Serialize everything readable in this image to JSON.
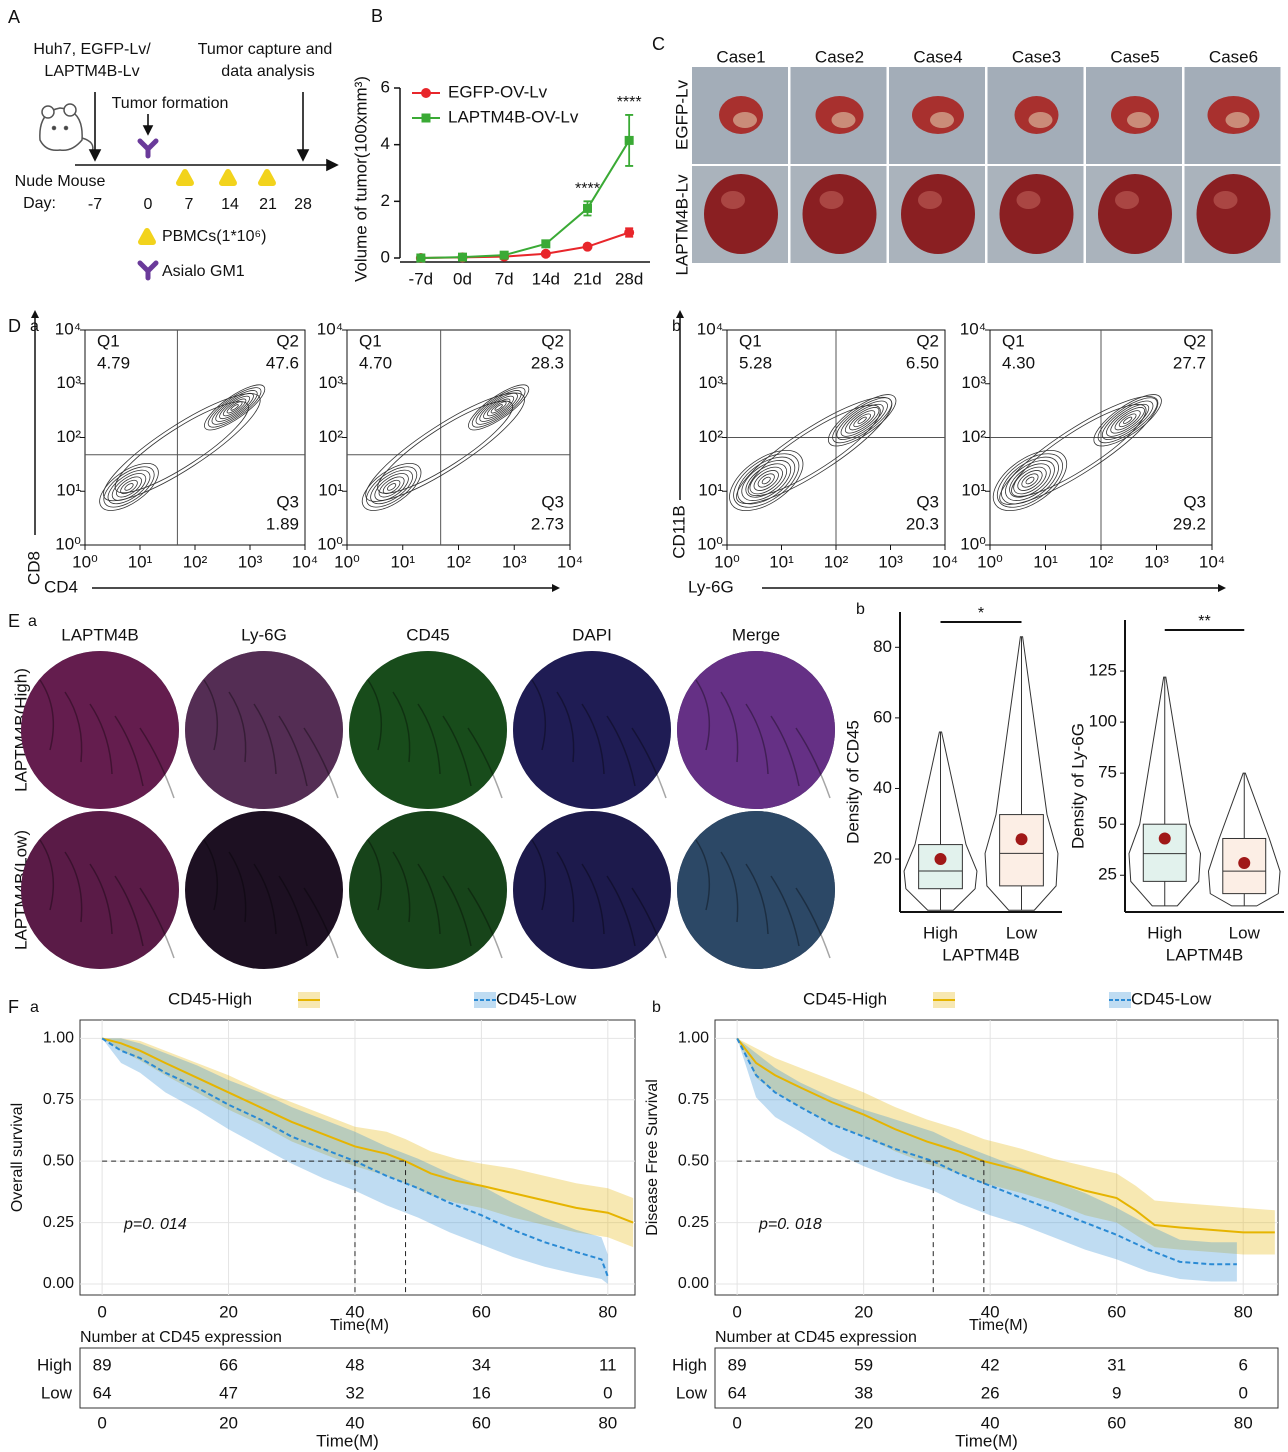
{
  "panel_a": {
    "panel_label": "A",
    "injection": [
      "Huh7, EGFP-Lv/",
      "LAPTM4B-Lv"
    ],
    "endpoint": [
      "Tumor capture and",
      "data analysis"
    ],
    "event": "Tumor formation",
    "subject": "Nude Mouse",
    "day_label": "Day:",
    "days": [
      "-7",
      "0",
      "7",
      "14",
      "21",
      "28"
    ],
    "legend": [
      "PBMCs(1*10⁶)",
      "Asialo GM1"
    ]
  },
  "panel_c": {
    "panel_label": "C",
    "cases": [
      "Case1",
      "Case2",
      "Case4",
      "Case3",
      "Case5",
      "Case6"
    ],
    "rows": [
      "EGFP-Lv",
      "LAPTM4B-Lv"
    ]
  },
  "panel_e": {
    "panel_label": "E",
    "subpanel_label": "a",
    "channels": [
      "LAPTM4B",
      "Ly-6G",
      "CD45",
      "DAPI",
      "Merge"
    ],
    "channel_colors": [
      "#d23c9b",
      "#b060a8",
      "#2aa32a",
      "#3a3aa8",
      "#222222"
    ],
    "rows": [
      "LAPTM4B(High)",
      "LAPTM4B(Low)"
    ]
  },
  "chart_data": [
    {
      "type": "line",
      "panel_label": "B",
      "y_label": "Volume of tumor(100xmm³)",
      "categories": [
        "-7d",
        "0d",
        "7d",
        "14d",
        "21d",
        "28d"
      ],
      "ylim": [
        0,
        6
      ],
      "yticks": [
        0,
        2,
        4,
        6
      ],
      "legend": "upper-left",
      "series": [
        {
          "name": "EGFP-OV-Lv",
          "color": "#e8262b",
          "marker": "circle",
          "values": [
            0,
            0.02,
            0.05,
            0.15,
            0.4,
            0.9
          ],
          "errors": [
            0.02,
            0.02,
            0.03,
            0.05,
            0.06,
            0.15
          ]
        },
        {
          "name": "LAPTM4B-OV-Lv",
          "color": "#3aaa35",
          "marker": "square",
          "values": [
            0,
            0.03,
            0.1,
            0.5,
            1.75,
            4.15
          ],
          "errors": [
            0.02,
            0.02,
            0.04,
            0.06,
            0.25,
            0.9
          ]
        }
      ],
      "significance": [
        null,
        null,
        null,
        null,
        "****",
        "****"
      ]
    },
    {
      "type": "contour",
      "panel_label": "D",
      "subpanel_label": "a",
      "x_label": "CD4",
      "y_label": "CD8",
      "log_scale": true,
      "xlim": [
        1,
        10000
      ],
      "ylim": [
        1,
        10000
      ],
      "xticks": [
        {
          "value": 1,
          "label": "10⁰"
        },
        {
          "value": 10,
          "label": "10¹"
        },
        {
          "value": 100,
          "label": "10²"
        },
        {
          "value": 1000,
          "label": "10³"
        },
        {
          "value": 10000,
          "label": "10⁴"
        }
      ],
      "yticks": [
        {
          "value": 1,
          "label": "10⁰"
        },
        {
          "value": 10,
          "label": "10¹"
        },
        {
          "value": 100,
          "label": "10²"
        },
        {
          "value": 1000,
          "label": "10³"
        },
        {
          "value": 10000,
          "label": "10⁴"
        }
      ],
      "quadrants": [
        "Q1",
        "Q2",
        "Q3"
      ],
      "values": [
        4.79,
        47.6,
        1.89
      ],
      "value_labels": [
        "4.79",
        "47.6",
        "1.89"
      ]
    },
    {
      "type": "contour",
      "log_scale": true,
      "xlim": [
        1,
        10000
      ],
      "ylim": [
        1,
        10000
      ],
      "xticks": [
        {
          "value": 1,
          "label": "10⁰"
        },
        {
          "value": 10,
          "label": "10¹"
        },
        {
          "value": 100,
          "label": "10²"
        },
        {
          "value": 1000,
          "label": "10³"
        },
        {
          "value": 10000,
          "label": "10⁴"
        }
      ],
      "yticks": [
        {
          "value": 1,
          "label": "10⁰"
        },
        {
          "value": 10,
          "label": "10¹"
        },
        {
          "value": 100,
          "label": "10²"
        },
        {
          "value": 1000,
          "label": "10³"
        },
        {
          "value": 10000,
          "label": "10⁴"
        }
      ],
      "quadrants": [
        "Q1",
        "Q2",
        "Q3"
      ],
      "values": [
        4.7,
        28.3,
        2.73
      ],
      "value_labels": [
        "4.70",
        "28.3",
        "2.73"
      ]
    },
    {
      "type": "contour",
      "subpanel_label": "b",
      "x_label": "Ly-6G",
      "y_label": "CD11B",
      "log_scale": true,
      "xlim": [
        1,
        10000
      ],
      "ylim": [
        1,
        10000
      ],
      "xticks": [
        {
          "value": 1,
          "label": "10⁰"
        },
        {
          "value": 10,
          "label": "10¹"
        },
        {
          "value": 100,
          "label": "10²"
        },
        {
          "value": 1000,
          "label": "10³"
        },
        {
          "value": 10000,
          "label": "10⁴"
        }
      ],
      "yticks": [
        {
          "value": 1,
          "label": "10⁰"
        },
        {
          "value": 10,
          "label": "10¹"
        },
        {
          "value": 100,
          "label": "10²"
        },
        {
          "value": 1000,
          "label": "10³"
        },
        {
          "value": 10000,
          "label": "10⁴"
        }
      ],
      "quadrants": [
        "Q1",
        "Q2",
        "Q3"
      ],
      "values": [
        5.28,
        6.5,
        20.3
      ],
      "value_labels": [
        "5.28",
        "6.50",
        "20.3"
      ]
    },
    {
      "type": "contour",
      "log_scale": true,
      "xlim": [
        1,
        10000
      ],
      "ylim": [
        1,
        10000
      ],
      "xticks": [
        {
          "value": 1,
          "label": "10⁰"
        },
        {
          "value": 10,
          "label": "10¹"
        },
        {
          "value": 100,
          "label": "10²"
        },
        {
          "value": 1000,
          "label": "10³"
        },
        {
          "value": 10000,
          "label": "10⁴"
        }
      ],
      "yticks": [
        {
          "value": 1,
          "label": "10⁰"
        },
        {
          "value": 10,
          "label": "10¹"
        },
        {
          "value": 100,
          "label": "10²"
        },
        {
          "value": 1000,
          "label": "10³"
        },
        {
          "value": 10000,
          "label": "10⁴"
        }
      ],
      "quadrants": [
        "Q1",
        "Q2",
        "Q3"
      ],
      "values": [
        4.3,
        27.7,
        29.2
      ],
      "value_labels": [
        "4.30",
        "27.7",
        "29.2"
      ]
    },
    {
      "type": "box",
      "subpanel_label": "b",
      "y_label": "Density of CD45",
      "x_label": "LAPTM4B",
      "categories": [
        "High",
        "Low"
      ],
      "ylim": [
        5,
        90
      ],
      "yticks": [
        20,
        40,
        60,
        80
      ],
      "colors": [
        "#5fb89a",
        "#f0a070"
      ],
      "mean_color": "#a01818",
      "boxes": [
        {
          "min": 5.5,
          "q1": 11.6,
          "median": 16.6,
          "q3": 24.1,
          "max": 56,
          "mean": 20
        },
        {
          "min": 5.5,
          "q1": 12.4,
          "median": 21.6,
          "q3": 32.6,
          "max": 83,
          "mean": 25.6
        }
      ],
      "significance": "*"
    },
    {
      "type": "box",
      "y_label": "Density of Ly-6G",
      "x_label": "LAPTM4B",
      "categories": [
        "High",
        "Low"
      ],
      "ylim": [
        7,
        150
      ],
      "yticks": [
        25,
        50,
        75,
        100,
        125
      ],
      "colors": [
        "#5fb89a",
        "#f0a070"
      ],
      "mean_color": "#a01818",
      "boxes": [
        {
          "min": 10,
          "q1": 22,
          "median": 35.6,
          "q3": 50,
          "max": 122,
          "mean": 43
        },
        {
          "min": 10,
          "q1": 16,
          "median": 27,
          "q3": 43,
          "max": 75,
          "mean": 31
        }
      ],
      "significance": "**"
    },
    {
      "type": "km",
      "panel_label": "F",
      "subpanel_label": "a",
      "y_label": "Overall survival",
      "x_label": "Time(M)",
      "xlim": [
        -3.5,
        84.3
      ],
      "ylim": [
        -0.045,
        1.075
      ],
      "xticks": [
        0,
        20,
        40,
        60,
        80
      ],
      "yticks": [
        {
          "value": 0,
          "label": "0.00"
        },
        0.25,
        {
          "value": 0.5,
          "label": "0.50"
        },
        0.75,
        {
          "value": 1,
          "label": "1.00"
        }
      ],
      "grid": true,
      "series": [
        {
          "name": "CD45-High",
          "color": "#e6b400",
          "linestyle": "solid",
          "x": [
            0,
            3,
            6,
            10,
            15,
            20,
            25,
            30,
            35,
            40,
            45,
            48,
            52,
            56,
            60,
            65,
            70,
            75,
            80,
            84
          ],
          "values": [
            1,
            0.98,
            0.95,
            0.9,
            0.84,
            0.78,
            0.72,
            0.66,
            0.61,
            0.56,
            0.53,
            0.5,
            0.45,
            0.42,
            0.4,
            0.37,
            0.34,
            0.31,
            0.29,
            0.25
          ],
          "lower": [
            1,
            0.95,
            0.91,
            0.85,
            0.78,
            0.71,
            0.65,
            0.58,
            0.53,
            0.48,
            0.44,
            0.41,
            0.36,
            0.33,
            0.31,
            0.27,
            0.24,
            0.21,
            0.19,
            0.15
          ],
          "upper": [
            1,
            1,
            0.99,
            0.95,
            0.9,
            0.85,
            0.79,
            0.74,
            0.69,
            0.64,
            0.62,
            0.59,
            0.54,
            0.51,
            0.49,
            0.47,
            0.44,
            0.41,
            0.39,
            0.35
          ]
        },
        {
          "name": "CD45-Low",
          "color": "#2a8ad4",
          "linestyle": "dashed",
          "x": [
            0,
            3,
            6,
            10,
            15,
            20,
            25,
            30,
            35,
            40,
            45,
            50,
            55,
            60,
            65,
            70,
            75,
            79,
            80
          ],
          "values": [
            1,
            0.95,
            0.92,
            0.86,
            0.8,
            0.73,
            0.67,
            0.6,
            0.55,
            0.5,
            0.44,
            0.39,
            0.33,
            0.28,
            0.22,
            0.17,
            0.13,
            0.1,
            0.03
          ],
          "lower": [
            1,
            0.9,
            0.86,
            0.78,
            0.71,
            0.63,
            0.56,
            0.49,
            0.43,
            0.38,
            0.32,
            0.27,
            0.21,
            0.16,
            0.11,
            0.07,
            0.04,
            0.02,
            0
          ],
          "upper": [
            1,
            1,
            0.98,
            0.94,
            0.89,
            0.83,
            0.78,
            0.72,
            0.67,
            0.62,
            0.56,
            0.51,
            0.45,
            0.4,
            0.33,
            0.27,
            0.22,
            0.19,
            0.12
          ]
        }
      ],
      "median_level": 0.5,
      "medians": [
        48,
        40
      ],
      "p_value_label": "p=0. 014",
      "risk_table": {
        "title": "Number at CD45 expression",
        "rows": [
          "High",
          "Low"
        ],
        "counts": [
          [
            89,
            66,
            48,
            34,
            11
          ],
          [
            64,
            47,
            32,
            16,
            0
          ]
        ]
      }
    },
    {
      "type": "km",
      "subpanel_label": "b",
      "y_label": "Disease Free Survival",
      "x_label": "Time(M)",
      "xlim": [
        -3.5,
        85.5
      ],
      "ylim": [
        -0.045,
        1.075
      ],
      "xticks": [
        0,
        20,
        40,
        60,
        80
      ],
      "yticks": [
        {
          "value": 0,
          "label": "0.00"
        },
        0.25,
        {
          "value": 0.5,
          "label": "0.50"
        },
        0.75,
        {
          "value": 1,
          "label": "1.00"
        }
      ],
      "grid": true,
      "series": [
        {
          "name": "CD45-High",
          "color": "#e6b400",
          "linestyle": "solid",
          "x": [
            0,
            3,
            6,
            10,
            15,
            20,
            25,
            30,
            35,
            39,
            45,
            50,
            55,
            60,
            63,
            66,
            70,
            75,
            80,
            85
          ],
          "values": [
            1,
            0.9,
            0.85,
            0.8,
            0.74,
            0.69,
            0.63,
            0.58,
            0.54,
            0.5,
            0.46,
            0.42,
            0.38,
            0.35,
            0.3,
            0.24,
            0.23,
            0.22,
            0.21,
            0.21
          ],
          "lower": [
            1,
            0.84,
            0.78,
            0.72,
            0.65,
            0.6,
            0.54,
            0.49,
            0.45,
            0.41,
            0.37,
            0.33,
            0.28,
            0.25,
            0.2,
            0.15,
            0.14,
            0.13,
            0.12,
            0.12
          ],
          "upper": [
            1,
            0.96,
            0.92,
            0.88,
            0.83,
            0.78,
            0.72,
            0.67,
            0.63,
            0.59,
            0.55,
            0.51,
            0.48,
            0.45,
            0.4,
            0.34,
            0.33,
            0.32,
            0.31,
            0.3
          ]
        },
        {
          "name": "CD45-Low",
          "color": "#2a8ad4",
          "linestyle": "dashed",
          "x": [
            0,
            3,
            6,
            10,
            15,
            20,
            25,
            31,
            35,
            40,
            45,
            50,
            55,
            60,
            65,
            70,
            75,
            79
          ],
          "values": [
            1,
            0.85,
            0.78,
            0.72,
            0.65,
            0.6,
            0.55,
            0.5,
            0.45,
            0.4,
            0.35,
            0.3,
            0.25,
            0.2,
            0.14,
            0.09,
            0.08,
            0.08
          ],
          "lower": [
            1,
            0.76,
            0.68,
            0.62,
            0.54,
            0.48,
            0.43,
            0.38,
            0.33,
            0.28,
            0.24,
            0.19,
            0.14,
            0.1,
            0.05,
            0.02,
            0.01,
            0.01
          ],
          "upper": [
            1,
            0.94,
            0.88,
            0.82,
            0.76,
            0.71,
            0.67,
            0.62,
            0.57,
            0.52,
            0.47,
            0.42,
            0.37,
            0.31,
            0.24,
            0.18,
            0.17,
            0.17
          ]
        }
      ],
      "median_level": 0.5,
      "medians": [
        39,
        31
      ],
      "p_value_label": "p=0. 018",
      "risk_table": {
        "title": "Number at CD45 expression",
        "rows": [
          "High",
          "Low"
        ],
        "counts": [
          [
            89,
            59,
            42,
            31,
            6
          ],
          [
            64,
            38,
            26,
            9,
            0
          ]
        ]
      }
    }
  ]
}
